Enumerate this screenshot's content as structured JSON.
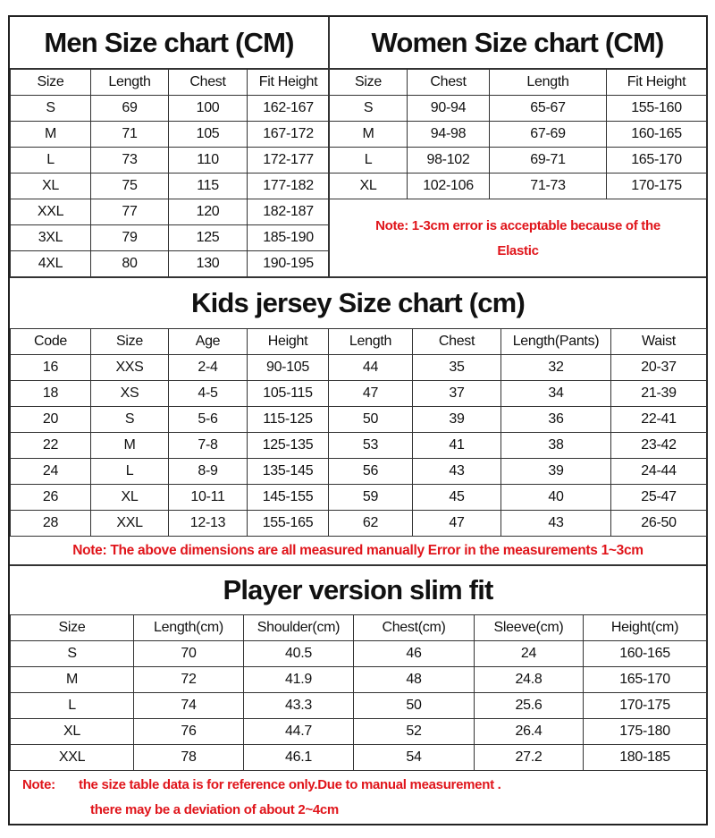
{
  "men": {
    "title": "Men Size chart (CM)",
    "headers": [
      "Size",
      "Length",
      "Chest",
      "Fit Height"
    ],
    "rows": [
      [
        "S",
        "69",
        "100",
        "162-167"
      ],
      [
        "M",
        "71",
        "105",
        "167-172"
      ],
      [
        "L",
        "73",
        "110",
        "172-177"
      ],
      [
        "XL",
        "75",
        "115",
        "177-182"
      ],
      [
        "XXL",
        "77",
        "120",
        "182-187"
      ],
      [
        "3XL",
        "79",
        "125",
        "185-190"
      ],
      [
        "4XL",
        "80",
        "130",
        "190-195"
      ]
    ]
  },
  "women": {
    "title": "Women Size chart (CM)",
    "headers": [
      "Size",
      "Chest",
      "Length",
      "Fit Height"
    ],
    "rows": [
      [
        "S",
        "90-94",
        "65-67",
        "155-160"
      ],
      [
        "M",
        "94-98",
        "67-69",
        "160-165"
      ],
      [
        "L",
        "98-102",
        "69-71",
        "165-170"
      ],
      [
        "XL",
        "102-106",
        "71-73",
        "170-175"
      ]
    ],
    "note_line1": "Note: 1-3cm error is acceptable because of the",
    "note_line2": "Elastic"
  },
  "kids": {
    "title": "Kids jersey Size chart (cm)",
    "headers": [
      "Code",
      "Size",
      "Age",
      "Height",
      "Length",
      "Chest",
      "Length(Pants)",
      "Waist"
    ],
    "rows": [
      [
        "16",
        "XXS",
        "2-4",
        "90-105",
        "44",
        "35",
        "32",
        "20-37"
      ],
      [
        "18",
        "XS",
        "4-5",
        "105-115",
        "47",
        "37",
        "34",
        "21-39"
      ],
      [
        "20",
        "S",
        "5-6",
        "115-125",
        "50",
        "39",
        "36",
        "22-41"
      ],
      [
        "22",
        "M",
        "7-8",
        "125-135",
        "53",
        "41",
        "38",
        "23-42"
      ],
      [
        "24",
        "L",
        "8-9",
        "135-145",
        "56",
        "43",
        "39",
        "24-44"
      ],
      [
        "26",
        "XL",
        "10-11",
        "145-155",
        "59",
        "45",
        "40",
        "25-47"
      ],
      [
        "28",
        "XXL",
        "12-13",
        "155-165",
        "62",
        "47",
        "43",
        "26-50"
      ]
    ],
    "note": "Note: The above dimensions are all measured manually Error in the measurements 1~3cm"
  },
  "player": {
    "title": "Player version slim fit",
    "headers": [
      "Size",
      "Length(cm)",
      "Shoulder(cm)",
      "Chest(cm)",
      "Sleeve(cm)",
      "Height(cm)"
    ],
    "rows": [
      [
        "S",
        "70",
        "40.5",
        "46",
        "24",
        "160-165"
      ],
      [
        "M",
        "72",
        "41.9",
        "48",
        "24.8",
        "165-170"
      ],
      [
        "L",
        "74",
        "43.3",
        "50",
        "25.6",
        "170-175"
      ],
      [
        "XL",
        "76",
        "44.7",
        "52",
        "26.4",
        "175-180"
      ],
      [
        "XXL",
        "78",
        "46.1",
        "54",
        "27.2",
        "180-185"
      ]
    ],
    "note_label": "Note:",
    "note_line1": "the size table data is for reference only.Due to manual measurement .",
    "note_line2": "there may be a deviation of about 2~4cm"
  },
  "colors": {
    "note": "#e0151b",
    "border": "#333333"
  }
}
